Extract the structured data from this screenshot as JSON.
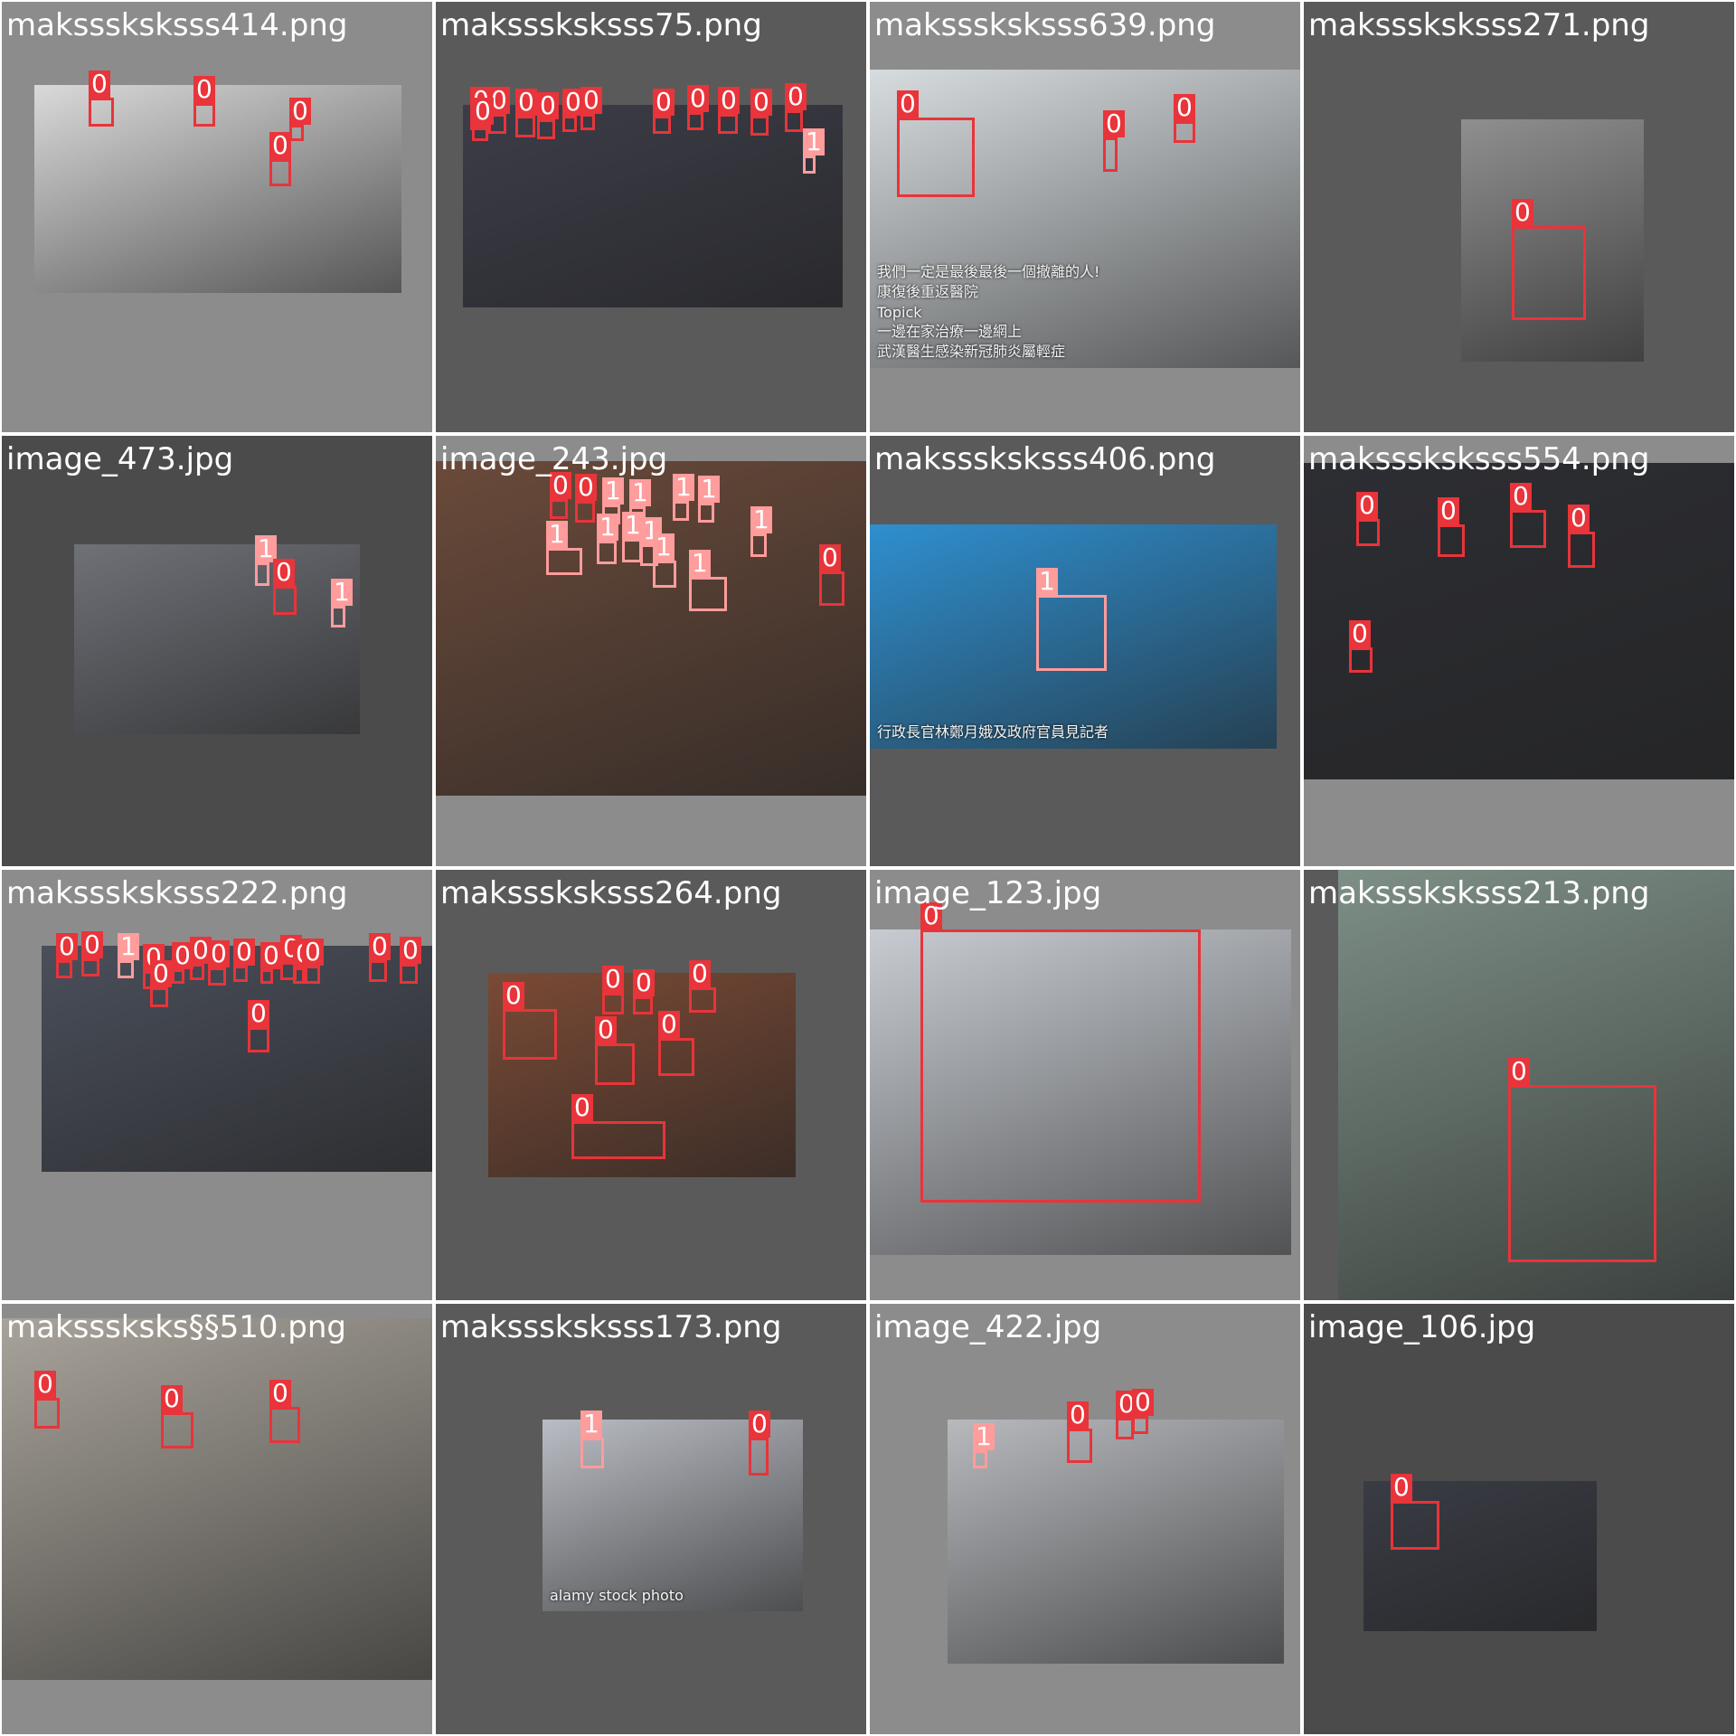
{
  "mosaic": {
    "tiles": [
      {
        "title": "maksssksksss414.png",
        "bg": "#8c8c8c",
        "photo_tint": "#d9d9d9",
        "detections": [
          {
            "label": "0"
          },
          {
            "label": "0"
          },
          {
            "label": "0"
          },
          {
            "label": "0"
          }
        ]
      },
      {
        "title": "maksssksksss75.png",
        "bg": "#5a5a5a",
        "photo_tint": "#3c3d48",
        "detections": [
          {
            "label": "0"
          },
          {
            "label": "0"
          },
          {
            "label": "0"
          },
          {
            "label": "0"
          },
          {
            "label": "0"
          },
          {
            "label": "0"
          },
          {
            "label": "0"
          },
          {
            "label": "0"
          },
          {
            "label": "0"
          },
          {
            "label": "0"
          },
          {
            "label": "0"
          },
          {
            "label": "0"
          },
          {
            "label": "1"
          }
        ]
      },
      {
        "title": "maksssksksss639.png",
        "bg": "#8c8c8c",
        "photo_tint": "#d7dcdf",
        "photo_text": [
          "武漢醫生感染新冠肺炎屬輕症",
          "一邊在家治療一邊網上",
          "Topick",
          "康復後重返醫院",
          "我們一定是最後最後一個撤離的人!"
        ],
        "detections": [
          {
            "label": "0"
          },
          {
            "label": "0"
          },
          {
            "label": "0"
          }
        ]
      },
      {
        "title": "maksssksksss271.png",
        "bg": "#5a5a5a",
        "photo_tint": "#8f8f8f",
        "detections": [
          {
            "label": "0"
          }
        ]
      },
      {
        "title": "image_473.jpg",
        "bg": "#4b4b4b",
        "photo_tint": "#6f7178",
        "detections": [
          {
            "label": "1"
          },
          {
            "label": "0"
          },
          {
            "label": "1"
          }
        ]
      },
      {
        "title": "image_243.jpg",
        "bg": "#8c8c8c",
        "photo_tint": "#6a4a3a",
        "detections": [
          {
            "label": "0"
          },
          {
            "label": "0"
          },
          {
            "label": "1"
          },
          {
            "label": "1"
          },
          {
            "label": "1"
          },
          {
            "label": "1"
          },
          {
            "label": "1"
          },
          {
            "label": "1"
          },
          {
            "label": "1"
          },
          {
            "label": "1"
          },
          {
            "label": "1"
          },
          {
            "label": "1"
          },
          {
            "label": "1"
          },
          {
            "label": "0"
          }
        ]
      },
      {
        "title": "maksssksksss406.png",
        "bg": "#5a5a5a",
        "photo_tint": "#2f8fcf",
        "photo_text": [
          "行政長官林鄭月娥及政府官員見記者"
        ],
        "detections": [
          {
            "label": "1"
          }
        ]
      },
      {
        "title": "maksssksksss554.png",
        "bg": "#8c8c8c",
        "photo_tint": "#2d2e33",
        "detections": [
          {
            "label": "0"
          },
          {
            "label": "0"
          },
          {
            "label": "0"
          },
          {
            "label": "0"
          },
          {
            "label": "0"
          }
        ]
      },
      {
        "title": "maksssksksss222.png",
        "bg": "#8c8c8c",
        "photo_tint": "#4a4f5a",
        "detections": [
          {
            "label": "0"
          },
          {
            "label": "0"
          },
          {
            "label": "1"
          },
          {
            "label": "0"
          },
          {
            "label": "0"
          },
          {
            "label": "0"
          },
          {
            "label": "0"
          },
          {
            "label": "0"
          },
          {
            "label": "0"
          },
          {
            "label": "0"
          },
          {
            "label": "0"
          },
          {
            "label": "0"
          },
          {
            "label": "0"
          },
          {
            "label": "0"
          },
          {
            "label": "0"
          },
          {
            "label": "0"
          }
        ]
      },
      {
        "title": "maksssksksss264.png",
        "bg": "#5a5a5a",
        "photo_tint": "#7a4a35",
        "detections": [
          {
            "label": "0"
          },
          {
            "label": "0"
          },
          {
            "label": "0"
          },
          {
            "label": "0"
          },
          {
            "label": "0"
          },
          {
            "label": "0"
          },
          {
            "label": "0"
          }
        ]
      },
      {
        "title": "image_123.jpg",
        "bg": "#8c8c8c",
        "photo_tint": "#c8ccd2",
        "detections": [
          {
            "label": "0"
          }
        ]
      },
      {
        "title": "maksssksksss213.png",
        "bg": "#5a5a5a",
        "photo_tint": "#7d8f86",
        "detections": [
          {
            "label": "0"
          }
        ]
      },
      {
        "title": "maksssksks§§510.png",
        "bg": "#8c8c8c",
        "photo_tint": "#a8a39a",
        "detections": [
          {
            "label": "0"
          },
          {
            "label": "0"
          },
          {
            "label": "0"
          }
        ]
      },
      {
        "title": "maksssksksss173.png",
        "bg": "#5a5a5a",
        "photo_tint": "#b9bcc3",
        "photo_text": [
          "alamy stock photo"
        ],
        "detections": [
          {
            "label": "1"
          },
          {
            "label": "0"
          }
        ]
      },
      {
        "title": "image_422.jpg",
        "bg": "#8c8c8c",
        "photo_tint": "#b7b9bd",
        "detections": [
          {
            "label": "1"
          },
          {
            "label": "0"
          },
          {
            "label": "0"
          },
          {
            "label": "0"
          }
        ]
      },
      {
        "title": "image_106.jpg",
        "bg": "#4b4b4b",
        "photo_tint": "#3a3c45",
        "detections": [
          {
            "label": "0"
          }
        ]
      }
    ]
  }
}
